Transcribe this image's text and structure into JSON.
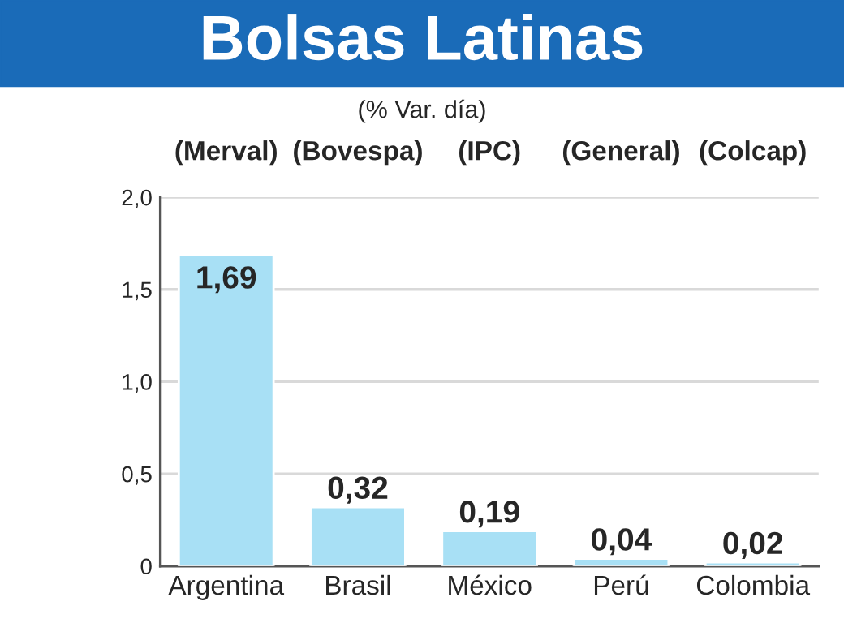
{
  "chart_data": {
    "type": "bar",
    "title": "Bolsas Latinas",
    "subtitle": "(% Var. día)",
    "categories": [
      "Argentina",
      "Brasil",
      "México",
      "Perú",
      "Colombia"
    ],
    "values": [
      1.69,
      0.32,
      0.19,
      0.04,
      0.02
    ],
    "value_labels": [
      "1,69",
      "0,32",
      "0,19",
      "0,04",
      "0,02"
    ],
    "color": "#a8e0f5",
    "ylim": [
      0,
      2
    ],
    "yticks": [
      {
        "value": 0,
        "label": "0"
      },
      {
        "value": 0.5,
        "label": "0,5"
      },
      {
        "value": 1,
        "label": "1,0"
      },
      {
        "value": 1.5,
        "label": "1,5"
      },
      {
        "value": 2,
        "label": "2,0"
      }
    ],
    "grid": "y",
    "legend": false,
    "annotations": [
      "(Merval)",
      "(Bovespa)",
      "(IPC)",
      "(General)",
      "(Colcap)"
    ]
  }
}
